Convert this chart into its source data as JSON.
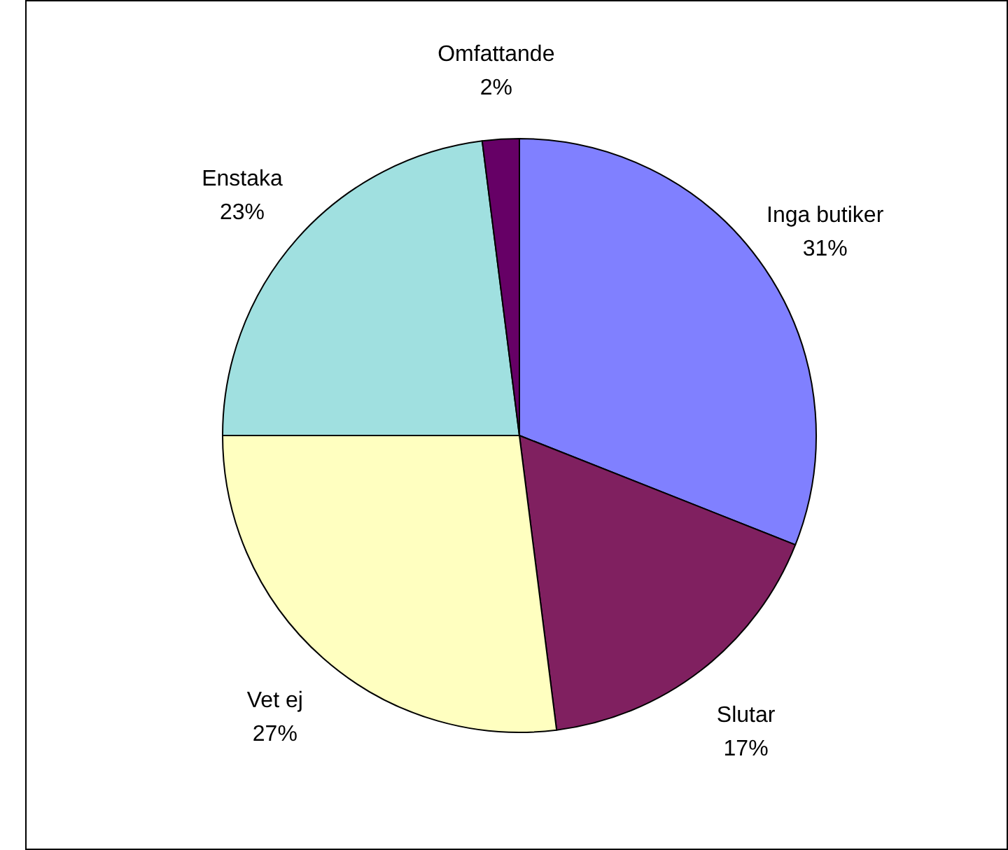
{
  "chart_data": {
    "type": "pie",
    "categories": [
      "Inga butiker",
      "Slutar",
      "Vet ej",
      "Enstaka",
      "Omfattande"
    ],
    "values": [
      31,
      17,
      27,
      23,
      2
    ],
    "value_labels": [
      "31%",
      "17%",
      "27%",
      "23%",
      "2%"
    ],
    "colors": [
      "#8080ff",
      "#802060",
      "#ffffc0",
      "#a0e0e0",
      "#660066"
    ]
  }
}
